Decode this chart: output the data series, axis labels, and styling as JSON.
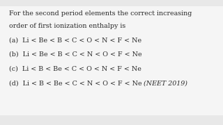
{
  "background_color": "#e8e8e8",
  "inner_bg_color": "#f5f5f5",
  "question_line1": "For the second period elements the correct increasing",
  "question_line2": "order of first ionization enthalpy is",
  "option_a": "(a)  Li < Be < B < C < O < N < F < Ne",
  "option_b": "(b)  Li < Be < B < C < N < O < F < Ne",
  "option_c": "(c)  Li < B < Be < C < O < N < F < Ne",
  "option_d_normal": "(d)  Li < B < Be < C < N < O < F < Ne ",
  "option_d_italic": "(NEET 2019)",
  "text_color": "#2a2a2a",
  "font_size": 6.8
}
